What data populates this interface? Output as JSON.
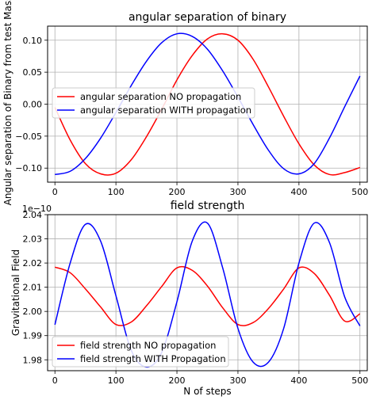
{
  "chart_data": [
    {
      "type": "line",
      "title": "angular separation of binary",
      "xlabel": "",
      "ylabel": "Angular separation of Binary from test Mass",
      "xlim": [
        -12,
        512
      ],
      "ylim": [
        -0.122,
        0.122
      ],
      "x_ticks": [
        "0",
        "100",
        "200",
        "300",
        "400",
        "500"
      ],
      "y_ticks": [
        "−0.10",
        "−0.05",
        "0.00",
        "0.05",
        "0.10"
      ],
      "grid": true,
      "legend_position": "center-left",
      "series": [
        {
          "name": "angular separation NO propagation",
          "color": "#ff0000",
          "x": [
            0,
            25,
            50,
            75,
            100,
            125,
            150,
            175,
            200,
            225,
            250,
            275,
            300,
            325,
            350,
            375,
            400,
            425,
            450,
            475,
            500
          ],
          "y": [
            -0.005,
            -0.056,
            -0.093,
            -0.109,
            -0.108,
            -0.087,
            -0.051,
            -0.008,
            0.038,
            0.076,
            0.102,
            0.11,
            0.1,
            0.07,
            0.027,
            -0.019,
            -0.062,
            -0.095,
            -0.11,
            -0.107,
            -0.099
          ]
        },
        {
          "name": "angular separation WITH propagation",
          "color": "#0000ff",
          "x": [
            0,
            25,
            50,
            75,
            100,
            125,
            150,
            175,
            200,
            225,
            250,
            275,
            300,
            325,
            350,
            375,
            400,
            425,
            450,
            475,
            500
          ],
          "y": [
            -0.11,
            -0.105,
            -0.085,
            -0.053,
            -0.013,
            0.029,
            0.067,
            0.096,
            0.11,
            0.106,
            0.086,
            0.052,
            0.011,
            -0.032,
            -0.072,
            -0.101,
            -0.109,
            -0.093,
            -0.053,
            -0.004,
            0.044
          ]
        }
      ]
    },
    {
      "type": "line",
      "title": "field strength",
      "xlabel": "N of steps",
      "ylabel": "Gravitational Field",
      "scale_label": "1e−10",
      "xlim": [
        -12,
        512
      ],
      "ylim": [
        1.9755,
        2.04
      ],
      "x_ticks": [
        "0",
        "100",
        "200",
        "300",
        "400",
        "500"
      ],
      "y_ticks": [
        "1.98",
        "1.99",
        "2.00",
        "2.01",
        "2.02",
        "2.03",
        "2.04"
      ],
      "grid": true,
      "legend_position": "lower-left",
      "series": [
        {
          "name": "field strength NO propagation",
          "color": "#ff0000",
          "x": [
            0,
            25,
            50,
            75,
            100,
            125,
            150,
            175,
            200,
            225,
            250,
            275,
            300,
            325,
            350,
            375,
            400,
            425,
            450,
            475,
            500
          ],
          "y": [
            2.0183,
            2.016,
            2.0093,
            2.0018,
            1.9946,
            1.9956,
            2.0023,
            2.0103,
            2.018,
            2.017,
            2.0105,
            2.0015,
            1.9946,
            1.9954,
            2.0012,
            2.0093,
            2.018,
            2.0157,
            2.0067,
            1.996,
            1.999
          ]
        },
        {
          "name": "field strength WITH Propagation",
          "color": "#0000ff",
          "x": [
            0,
            25,
            50,
            75,
            100,
            125,
            150,
            175,
            200,
            225,
            250,
            275,
            300,
            325,
            350,
            375,
            400,
            425,
            450,
            475,
            500
          ],
          "y": [
            1.9945,
            2.02,
            2.036,
            2.029,
            2.0065,
            1.984,
            1.977,
            1.983,
            2.004,
            2.029,
            2.0365,
            2.018,
            1.993,
            1.979,
            1.979,
            1.993,
            2.02,
            2.0365,
            2.0285,
            2.006,
            1.994
          ]
        }
      ]
    }
  ]
}
